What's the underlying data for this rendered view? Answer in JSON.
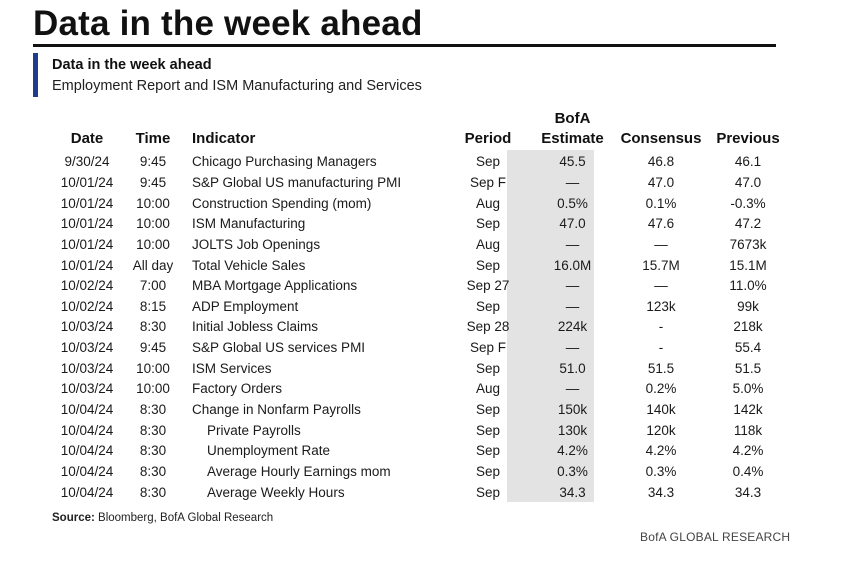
{
  "headline": "Data in the week ahead",
  "subtitle": "Data in the week ahead",
  "subsubtitle": "Employment Report and ISM Manufacturing and Services",
  "columns": {
    "date": "Date",
    "time": "Time",
    "indicator": "Indicator",
    "period": "Period",
    "bofa_line1": "BofA",
    "bofa_line2": "Estimate",
    "consensus": "Consensus",
    "previous": "Previous"
  },
  "rows": [
    {
      "date": "9/30/24",
      "time": "9:45",
      "indicator": "Chicago Purchasing Managers",
      "period": "Sep",
      "bofa": "45.5",
      "consensus": "46.8",
      "previous": "46.1"
    },
    {
      "date": "10/01/24",
      "time": "9:45",
      "indicator": "S&P Global US manufacturing PMI",
      "period": "Sep F",
      "bofa": "—",
      "consensus": "47.0",
      "previous": "47.0"
    },
    {
      "date": "10/01/24",
      "time": "10:00",
      "indicator": "Construction Spending (mom)",
      "period": "Aug",
      "bofa": "0.5%",
      "consensus": "0.1%",
      "previous": "-0.3%"
    },
    {
      "date": "10/01/24",
      "time": "10:00",
      "indicator": "ISM Manufacturing",
      "period": "Sep",
      "bofa": "47.0",
      "consensus": "47.6",
      "previous": "47.2"
    },
    {
      "date": "10/01/24",
      "time": "10:00",
      "indicator": "JOLTS Job Openings",
      "period": "Aug",
      "bofa": "—",
      "consensus": "—",
      "previous": "7673k"
    },
    {
      "date": "10/01/24",
      "time": "All day",
      "indicator": "Total Vehicle Sales",
      "period": "Sep",
      "bofa": "16.0M",
      "consensus": "15.7M",
      "previous": "15.1M"
    },
    {
      "date": "10/02/24",
      "time": "7:00",
      "indicator": "MBA Mortgage Applications",
      "period": "Sep 27",
      "bofa": "—",
      "consensus": "—",
      "previous": "11.0%"
    },
    {
      "date": "10/02/24",
      "time": "8:15",
      "indicator": "ADP Employment",
      "period": "Sep",
      "bofa": "—",
      "consensus": "123k",
      "previous": "99k"
    },
    {
      "date": "10/03/24",
      "time": "8:30",
      "indicator": "Initial Jobless Claims",
      "period": "Sep 28",
      "bofa": "224k",
      "consensus": "-",
      "previous": "218k"
    },
    {
      "date": "10/03/24",
      "time": "9:45",
      "indicator": "S&P Global US services PMI",
      "period": "Sep F",
      "bofa": "—",
      "consensus": "-",
      "previous": "55.4"
    },
    {
      "date": "10/03/24",
      "time": "10:00",
      "indicator": "ISM Services",
      "period": "Sep",
      "bofa": "51.0",
      "consensus": "51.5",
      "previous": "51.5"
    },
    {
      "date": "10/03/24",
      "time": "10:00",
      "indicator": "Factory Orders",
      "period": "Aug",
      "bofa": "—",
      "consensus": "0.2%",
      "previous": "5.0%"
    },
    {
      "date": "10/04/24",
      "time": "8:30",
      "indicator": "Change in Nonfarm Payrolls",
      "period": "Sep",
      "bofa": "150k",
      "consensus": "140k",
      "previous": "142k"
    },
    {
      "date": "10/04/24",
      "time": "8:30",
      "indicator": "Private Payrolls",
      "period": "Sep",
      "bofa": "130k",
      "consensus": "120k",
      "previous": "118k",
      "indent": true
    },
    {
      "date": "10/04/24",
      "time": "8:30",
      "indicator": "Unemployment Rate",
      "period": "Sep",
      "bofa": "4.2%",
      "consensus": "4.2%",
      "previous": "4.2%",
      "indent": true
    },
    {
      "date": "10/04/24",
      "time": "8:30",
      "indicator": "Average Hourly Earnings mom",
      "period": "Sep",
      "bofa": "0.3%",
      "consensus": "0.3%",
      "previous": "0.4%",
      "indent": true
    },
    {
      "date": "10/04/24",
      "time": "8:30",
      "indicator": "Average Weekly Hours",
      "period": "Sep",
      "bofa": "34.3",
      "consensus": "34.3",
      "previous": "34.3",
      "indent": true
    }
  ],
  "source_label": "Source:",
  "source_text": " Bloomberg, BofA Global Research",
  "brand": "BofA GLOBAL RESEARCH"
}
